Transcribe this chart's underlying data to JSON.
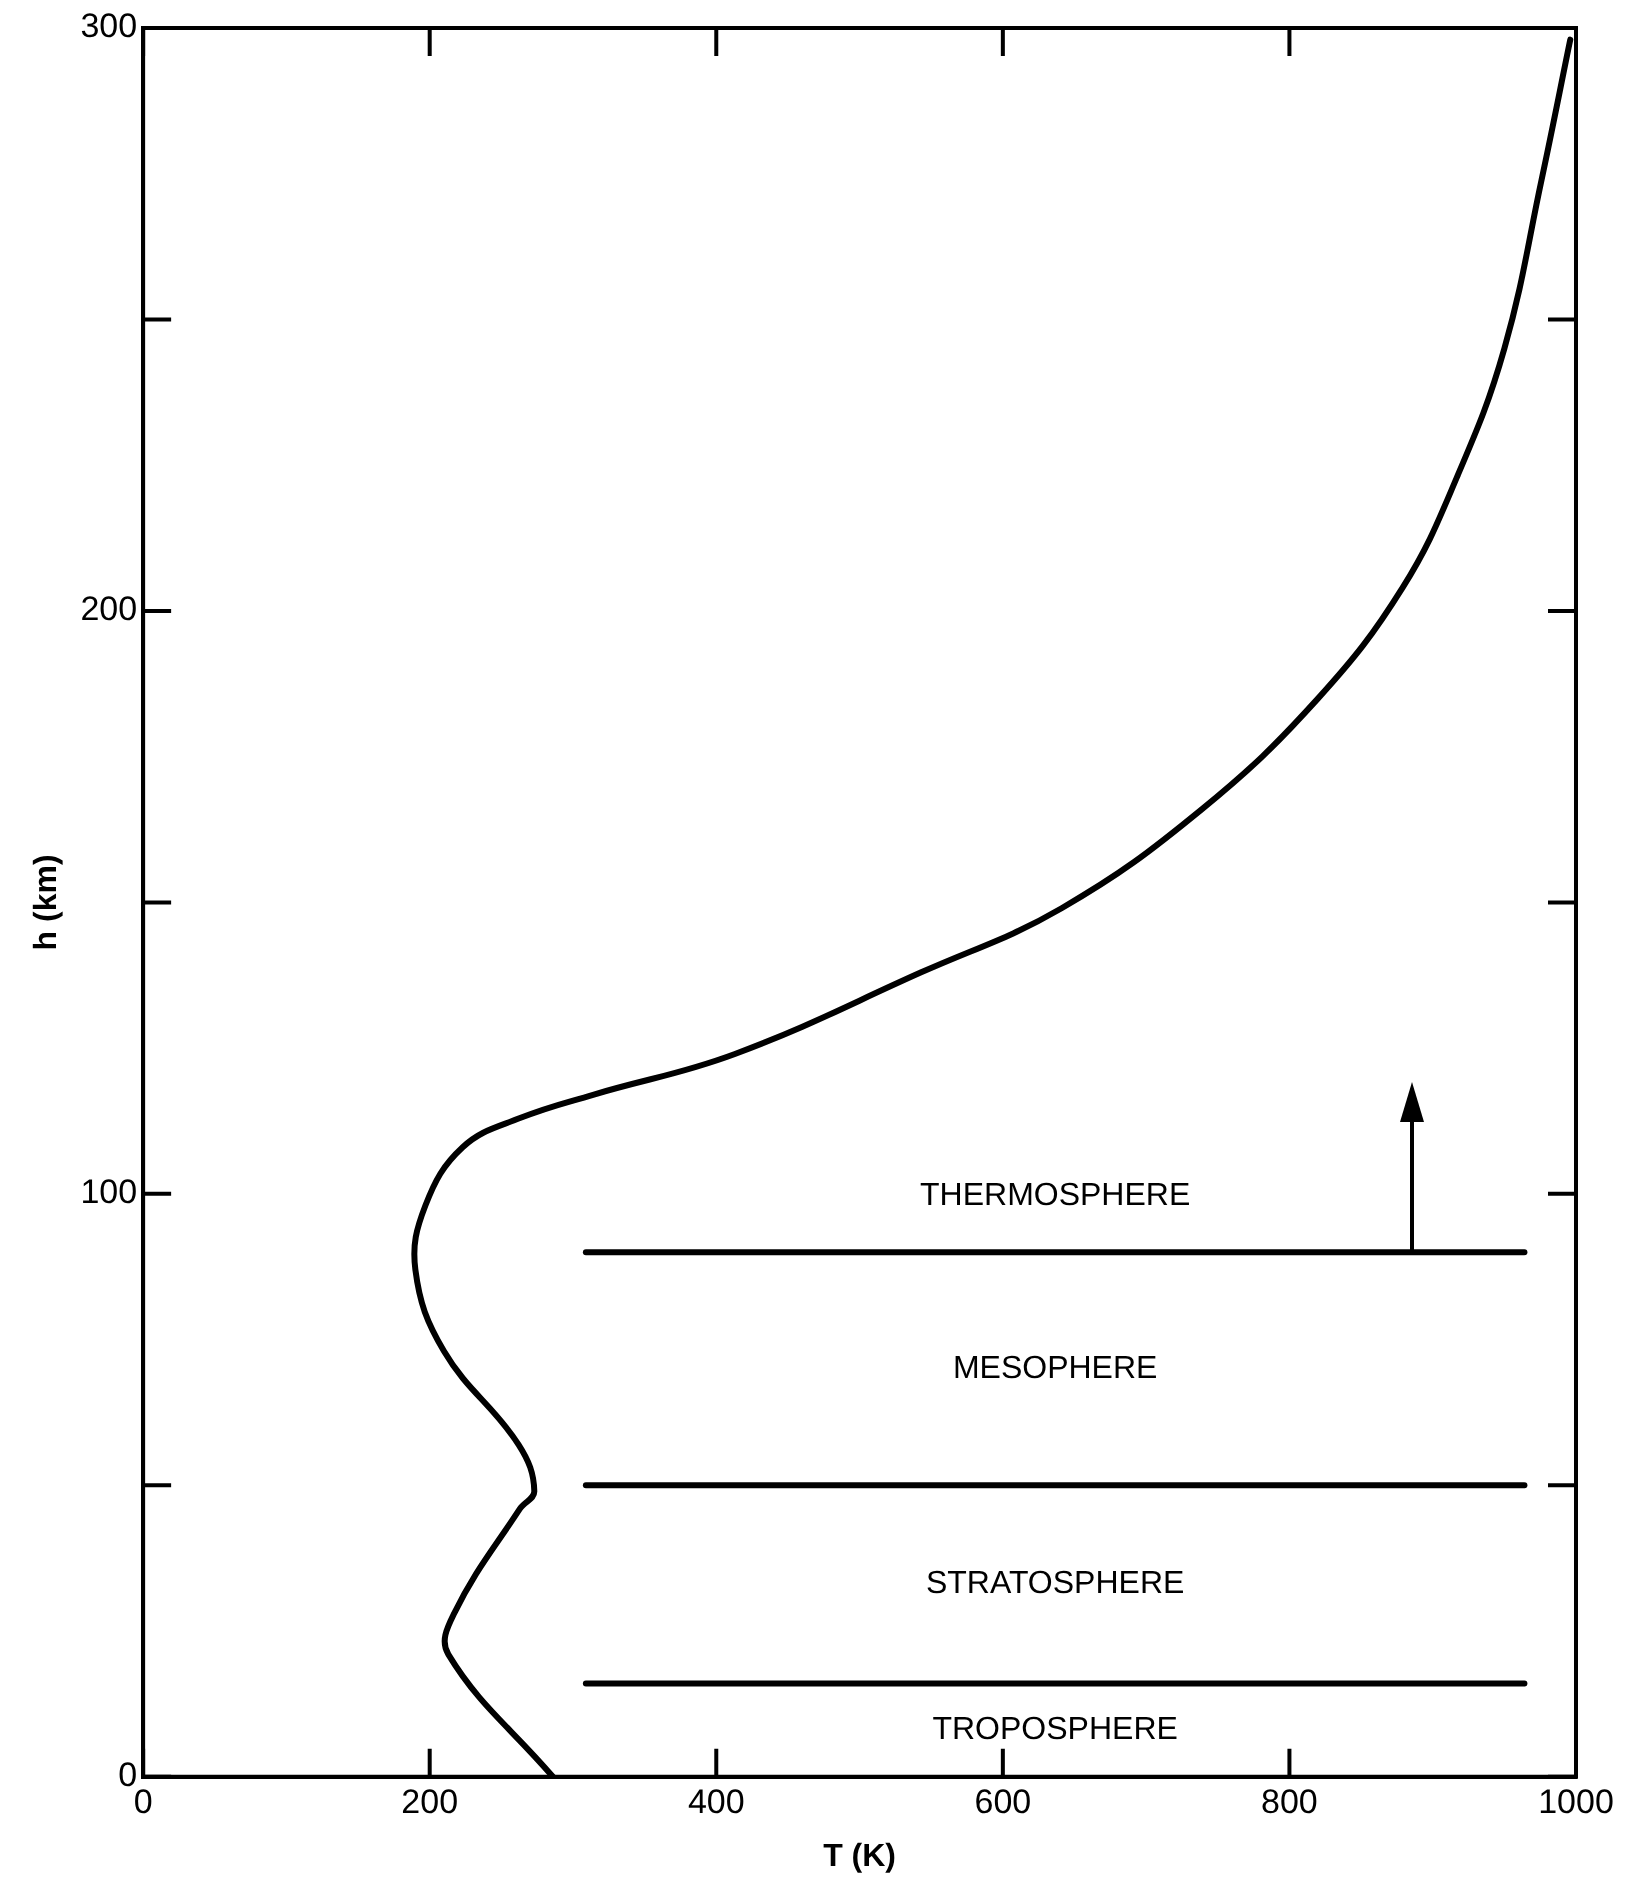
{
  "chart_data": {
    "type": "line",
    "xlabel": "T (K)",
    "ylabel": "h (km)",
    "xlim": [
      0,
      1000
    ],
    "xticks": [
      0,
      200,
      400,
      600,
      800,
      1000
    ],
    "ylim": [
      0,
      300
    ],
    "yticks": [
      0,
      {
        "value": 50,
        "label": null
      },
      100,
      {
        "value": 150,
        "label": null
      },
      200,
      {
        "value": 250,
        "label": null
      },
      300
    ],
    "grid": false,
    "legend": false,
    "marker": "none",
    "line_style": "solid",
    "series": [
      {
        "color": "#000000",
        "x": [
          286,
          213,
          217,
          263,
          273,
          262,
          210,
          190,
          197,
          223,
          263,
          314,
          413,
          543,
          641,
          739,
          820,
          879,
          917,
          950,
          976,
          996
        ],
        "values": [
          0,
          21,
          28,
          46,
          49,
          57,
          73,
          87,
          98,
          108,
          113,
          117,
          124,
          138,
          149,
          166,
          185,
          204,
          223,
          245,
          274,
          298
        ]
      },
      {
        "color": "#000000",
        "x": [
          309,
          964
        ],
        "values": [
          16,
          16
        ]
      },
      {
        "color": "#000000",
        "x": [
          309,
          964
        ],
        "values": [
          50,
          50
        ]
      },
      {
        "color": "#000000",
        "x": [
          309,
          964
        ],
        "values": [
          90,
          90
        ]
      }
    ],
    "annotations": [
      "THERMOSPHERE",
      "MESOPHERE",
      "STRATOSPHERE",
      "TROPOSPHERE"
    ]
  }
}
